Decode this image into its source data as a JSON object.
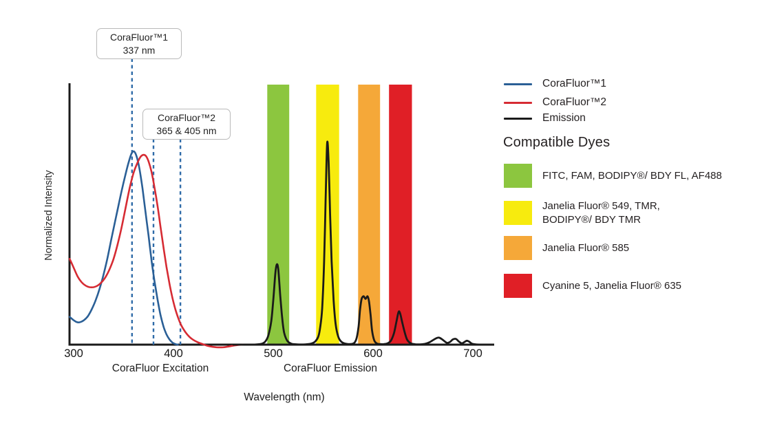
{
  "chart_data": {
    "type": "line",
    "title": "",
    "xlabel": "Wavelength (nm)",
    "ylabel": "Normalized Intensity",
    "x_ticks": [
      300,
      400,
      500,
      600,
      700
    ],
    "xlim": [
      300,
      700
    ],
    "ylim": [
      0,
      1
    ],
    "grid": false,
    "x_group_labels": [
      {
        "label": "CoraFluor Excitation"
      },
      {
        "label": "CoraFluor Emission"
      }
    ],
    "annotations": [
      {
        "title": "CoraFluor™1",
        "value": "337 nm",
        "lines_nm": [
          358.5
        ]
      },
      {
        "title": "CoraFluor™2",
        "value": "365 & 405 nm",
        "lines_nm": [
          380,
          407
        ]
      }
    ],
    "dashed_line_color": "#2f6ba8",
    "axis_color": "#1a1a1a",
    "bands": [
      {
        "name": "green",
        "color": "#8cc63f",
        "range_nm": [
          494,
          516
        ],
        "dyes": "FITC, FAM, BODIPY®/ BDY FL, AF488"
      },
      {
        "name": "yellow",
        "color": "#f7eb0e",
        "range_nm": [
          543,
          566
        ],
        "dyes": "Janelia Fluor® 549, TMR, BODIPY®/ BDY TMR"
      },
      {
        "name": "orange",
        "color": "#f5a839",
        "range_nm": [
          585,
          607
        ],
        "dyes": "Janelia Fluor® 585"
      },
      {
        "name": "red",
        "color": "#e01f26",
        "range_nm": [
          616,
          639
        ],
        "dyes": "Cyanine 5, Janelia Fluor® 635"
      }
    ],
    "series": [
      {
        "id": "corafluor1-excitation",
        "name": "CoraFluor™1",
        "color": "#2a5f96",
        "width": 2.6,
        "points": [
          [
            296,
            0.107
          ],
          [
            300,
            0.094
          ],
          [
            303,
            0.087
          ],
          [
            306,
            0.086
          ],
          [
            310,
            0.093
          ],
          [
            314,
            0.108
          ],
          [
            318,
            0.135
          ],
          [
            322,
            0.17
          ],
          [
            326,
            0.215
          ],
          [
            330,
            0.27
          ],
          [
            334,
            0.335
          ],
          [
            338,
            0.41
          ],
          [
            343,
            0.5
          ],
          [
            348,
            0.59
          ],
          [
            352,
            0.655
          ],
          [
            355,
            0.7
          ],
          [
            358,
            0.735
          ],
          [
            360.5,
            0.743
          ],
          [
            363,
            0.725
          ],
          [
            366,
            0.675
          ],
          [
            369,
            0.6
          ],
          [
            372,
            0.51
          ],
          [
            375,
            0.42
          ],
          [
            378,
            0.325
          ],
          [
            381,
            0.245
          ],
          [
            384,
            0.175
          ],
          [
            387,
            0.115
          ],
          [
            390,
            0.07
          ],
          [
            393,
            0.04
          ],
          [
            396,
            0.02
          ],
          [
            399,
            0.008
          ],
          [
            402,
            0.002
          ],
          [
            404.5,
            0
          ]
        ]
      },
      {
        "id": "corafluor2-excitation",
        "name": "CoraFluor™2",
        "color": "#d62b33",
        "width": 2.6,
        "points": [
          [
            296,
            0.33
          ],
          [
            300,
            0.296
          ],
          [
            304,
            0.262
          ],
          [
            308,
            0.24
          ],
          [
            312,
            0.227
          ],
          [
            316,
            0.221
          ],
          [
            320,
            0.221
          ],
          [
            324,
            0.227
          ],
          [
            328,
            0.24
          ],
          [
            332,
            0.26
          ],
          [
            336,
            0.29
          ],
          [
            340,
            0.33
          ],
          [
            344,
            0.385
          ],
          [
            348,
            0.45
          ],
          [
            352,
            0.525
          ],
          [
            356,
            0.6
          ],
          [
            360,
            0.66
          ],
          [
            364,
            0.7
          ],
          [
            367,
            0.722
          ],
          [
            370,
            0.73
          ],
          [
            372.5,
            0.725
          ],
          [
            375,
            0.705
          ],
          [
            378,
            0.665
          ],
          [
            381,
            0.605
          ],
          [
            384,
            0.535
          ],
          [
            387,
            0.455
          ],
          [
            390,
            0.375
          ],
          [
            393,
            0.3
          ],
          [
            396,
            0.235
          ],
          [
            399,
            0.18
          ],
          [
            402,
            0.135
          ],
          [
            405,
            0.1
          ],
          [
            408,
            0.073
          ],
          [
            412,
            0.048
          ],
          [
            416,
            0.03
          ],
          [
            420,
            0.018
          ],
          [
            425,
            0.008
          ],
          [
            430,
            0.001
          ],
          [
            436,
            -0.006
          ],
          [
            443,
            -0.01
          ],
          [
            450,
            -0.01
          ],
          [
            457,
            -0.006
          ],
          [
            463,
            -0.002
          ],
          [
            470,
            0
          ]
        ]
      },
      {
        "id": "emission",
        "name": "Emission",
        "color": "#1a1a1a",
        "width": 2.8,
        "points": [
          [
            460,
            0
          ],
          [
            480,
            0
          ],
          [
            488,
            0.003
          ],
          [
            492,
            0.012
          ],
          [
            495,
            0.035
          ],
          [
            498,
            0.09
          ],
          [
            500,
            0.17
          ],
          [
            502,
            0.27
          ],
          [
            503.5,
            0.308
          ],
          [
            505,
            0.29
          ],
          [
            507,
            0.19
          ],
          [
            509,
            0.1
          ],
          [
            511,
            0.045
          ],
          [
            514,
            0.015
          ],
          [
            518,
            0.004
          ],
          [
            524,
            0.001
          ],
          [
            532,
            0.001
          ],
          [
            538,
            0.004
          ],
          [
            542,
            0.012
          ],
          [
            545,
            0.03
          ],
          [
            547,
            0.065
          ],
          [
            549,
            0.14
          ],
          [
            551,
            0.32
          ],
          [
            552.5,
            0.56
          ],
          [
            554,
            0.775
          ],
          [
            555.5,
            0.7
          ],
          [
            557,
            0.5
          ],
          [
            558.5,
            0.32
          ],
          [
            560.5,
            0.17
          ],
          [
            562.5,
            0.08
          ],
          [
            565,
            0.032
          ],
          [
            568,
            0.012
          ],
          [
            572,
            0.004
          ],
          [
            577,
            0.002
          ],
          [
            581,
            0.006
          ],
          [
            583.5,
            0.025
          ],
          [
            585.5,
            0.07
          ],
          [
            587,
            0.135
          ],
          [
            588.5,
            0.175
          ],
          [
            590.5,
            0.186
          ],
          [
            592.5,
            0.176
          ],
          [
            594.5,
            0.186
          ],
          [
            596,
            0.165
          ],
          [
            597.5,
            0.115
          ],
          [
            599,
            0.055
          ],
          [
            601,
            0.018
          ],
          [
            603.5,
            0.005
          ],
          [
            607,
            0.002
          ],
          [
            611,
            0.002
          ],
          [
            615,
            0.006
          ],
          [
            618,
            0.016
          ],
          [
            621,
            0.045
          ],
          [
            623.5,
            0.09
          ],
          [
            625.5,
            0.125
          ],
          [
            627,
            0.122
          ],
          [
            629,
            0.09
          ],
          [
            631.5,
            0.05
          ],
          [
            634,
            0.02
          ],
          [
            637,
            0.007
          ],
          [
            641,
            0.002
          ],
          [
            647,
            0.001
          ],
          [
            652,
            0.003
          ],
          [
            657,
            0.01
          ],
          [
            662,
            0.022
          ],
          [
            666,
            0.027
          ],
          [
            670,
            0.018
          ],
          [
            674,
            0.007
          ],
          [
            677,
            0.01
          ],
          [
            680,
            0.02
          ],
          [
            683,
            0.022
          ],
          [
            686,
            0.012
          ],
          [
            689,
            0.005
          ],
          [
            691.5,
            0.01
          ],
          [
            694,
            0.015
          ],
          [
            696.5,
            0.011
          ],
          [
            699,
            0.004
          ],
          [
            703,
            0.001
          ],
          [
            710,
            0
          ],
          [
            716,
            0
          ]
        ]
      }
    ],
    "legend_position": "upper right"
  },
  "legend": {
    "items": [
      {
        "label": "CoraFluor™1",
        "color": "#2a5f96"
      },
      {
        "label": "CoraFluor™2",
        "color": "#d62b33"
      },
      {
        "label": "Emission",
        "color": "#1a1a1a"
      }
    ]
  },
  "dyes": {
    "heading": "Compatible Dyes",
    "items": [
      {
        "color": "#8cc63f",
        "lines": [
          "FITC, FAM, BODIPY®/ BDY FL, AF488"
        ]
      },
      {
        "color": "#f7eb0e",
        "lines": [
          "Janelia Fluor® 549, TMR,",
          "BODIPY®/ BDY TMR"
        ]
      },
      {
        "color": "#f5a839",
        "lines": [
          "Janelia Fluor® 585"
        ]
      },
      {
        "color": "#e01f26",
        "lines": [
          "Cyanine 5, Janelia Fluor® 635"
        ]
      }
    ]
  }
}
